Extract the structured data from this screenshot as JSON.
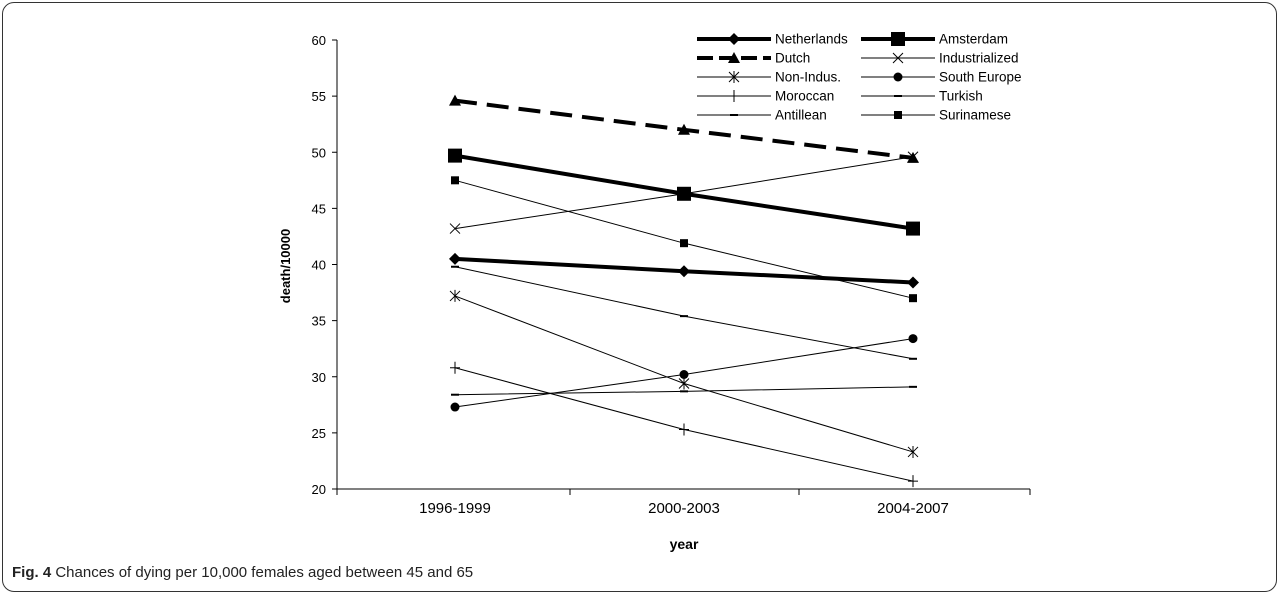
{
  "caption": {
    "label": "Fig. 4",
    "text": "Chances of dying per 10,000 females aged between 45 and 65"
  },
  "chart_data": {
    "type": "line",
    "xlabel": "year",
    "ylabel": "death/10000",
    "categories": [
      "1996-1999",
      "2000-2003",
      "2004-2007"
    ],
    "ylim": [
      20,
      60
    ],
    "yticks": [
      "20",
      "25",
      "30",
      "35",
      "40",
      "45",
      "50",
      "55",
      "60"
    ],
    "grid": false,
    "legend_position": "top-right",
    "series": [
      {
        "name": "Netherlands",
        "values": [
          40.5,
          39.4,
          38.4
        ],
        "marker": "diamond",
        "stroke": 4,
        "dash": ""
      },
      {
        "name": "Amsterdam",
        "values": [
          49.7,
          46.3,
          43.2
        ],
        "marker": "square-large",
        "stroke": 4,
        "dash": ""
      },
      {
        "name": "Dutch",
        "values": [
          54.6,
          52.0,
          49.5
        ],
        "marker": "triangle",
        "stroke": 4,
        "dash": "22,10"
      },
      {
        "name": "Industrialized",
        "values": [
          43.2,
          46.3,
          49.6
        ],
        "marker": "x",
        "stroke": 1,
        "dash": ""
      },
      {
        "name": "Non-Indus.",
        "values": [
          37.2,
          29.4,
          23.3
        ],
        "marker": "star",
        "stroke": 1,
        "dash": ""
      },
      {
        "name": "South Europe",
        "values": [
          27.3,
          30.2,
          33.4
        ],
        "marker": "circle",
        "stroke": 1,
        "dash": ""
      },
      {
        "name": "Moroccan",
        "values": [
          30.8,
          25.3,
          20.7
        ],
        "marker": "plus",
        "stroke": 1,
        "dash": ""
      },
      {
        "name": "Turkish",
        "values": [
          28.4,
          28.7,
          29.1
        ],
        "marker": "dash",
        "stroke": 1,
        "dash": ""
      },
      {
        "name": "Antillean",
        "values": [
          39.8,
          35.4,
          31.6
        ],
        "marker": "dash",
        "stroke": 1,
        "dash": ""
      },
      {
        "name": "Surinamese",
        "values": [
          47.5,
          41.9,
          37.0
        ],
        "marker": "square",
        "stroke": 1,
        "dash": ""
      }
    ]
  }
}
